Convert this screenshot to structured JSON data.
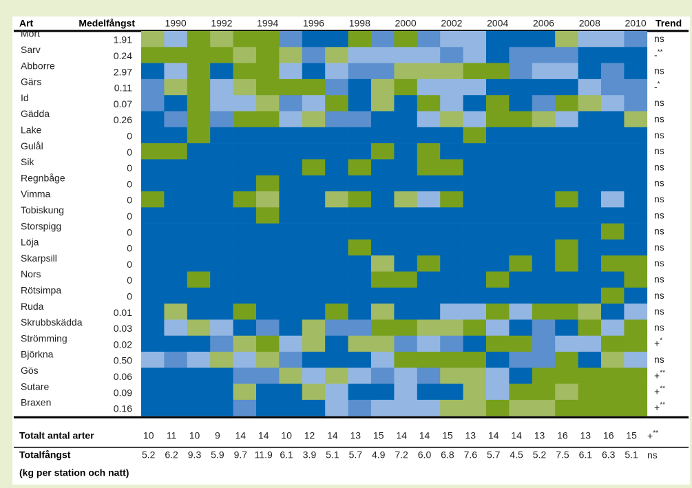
{
  "header": {
    "art": "Art",
    "medel": "Medelfångst",
    "trend": "Trend",
    "years": [
      "1990",
      "1992",
      "1994",
      "1996",
      "1998",
      "2000",
      "2002",
      "2004",
      "2006",
      "2008",
      "2010"
    ]
  },
  "palette": [
    "#0066b3",
    "#5b8fce",
    "#94b6e3",
    "#a3bb62",
    "#78a01c"
  ],
  "rows": [
    {
      "name": "Mört",
      "value": "1.91",
      "trend": {
        "sign": "ns"
      },
      "cells": [
        3,
        2,
        4,
        3,
        4,
        4,
        1,
        0,
        0,
        4,
        1,
        4,
        1,
        2,
        2,
        0,
        0,
        0,
        3,
        2,
        2,
        1
      ]
    },
    {
      "name": "Sarv",
      "value": "0.24",
      "trend": {
        "sign": "-",
        "sig": "**"
      },
      "cells": [
        4,
        4,
        4,
        4,
        3,
        4,
        3,
        1,
        3,
        2,
        2,
        2,
        2,
        1,
        2,
        0,
        1,
        1,
        1,
        0,
        0,
        0
      ]
    },
    {
      "name": "Abborre",
      "value": "2.97",
      "trend": {
        "sign": "ns"
      },
      "cells": [
        0,
        2,
        4,
        0,
        4,
        4,
        2,
        0,
        2,
        1,
        1,
        3,
        3,
        3,
        4,
        4,
        1,
        2,
        2,
        0,
        1,
        0
      ]
    },
    {
      "name": "Gärs",
      "value": "0.11",
      "trend": {
        "sign": "-",
        "sig": "*"
      },
      "cells": [
        1,
        3,
        4,
        2,
        3,
        4,
        4,
        4,
        1,
        0,
        3,
        4,
        2,
        2,
        2,
        0,
        0,
        0,
        0,
        2,
        1,
        1
      ]
    },
    {
      "name": "Id",
      "value": "0.07",
      "trend": {
        "sign": "ns"
      },
      "cells": [
        1,
        0,
        4,
        2,
        2,
        3,
        1,
        2,
        4,
        0,
        3,
        0,
        4,
        2,
        0,
        4,
        0,
        1,
        4,
        3,
        2,
        1
      ]
    },
    {
      "name": "Gädda",
      "value": "0.26",
      "trend": {
        "sign": "ns"
      },
      "cells": [
        0,
        1,
        4,
        1,
        4,
        4,
        2,
        3,
        1,
        1,
        0,
        0,
        2,
        3,
        2,
        4,
        4,
        3,
        2,
        0,
        0,
        3
      ]
    },
    {
      "name": "Lake",
      "value": "0",
      "trend": {
        "sign": "ns"
      },
      "cells": [
        0,
        0,
        4,
        0,
        0,
        0,
        0,
        0,
        0,
        0,
        0,
        0,
        0,
        0,
        4,
        0,
        0,
        0,
        0,
        0,
        0,
        0
      ]
    },
    {
      "name": "Gulål",
      "value": "0",
      "trend": {
        "sign": "ns"
      },
      "cells": [
        4,
        4,
        0,
        0,
        0,
        0,
        0,
        0,
        0,
        0,
        4,
        0,
        4,
        0,
        0,
        0,
        0,
        0,
        0,
        0,
        0,
        0
      ]
    },
    {
      "name": "Sik",
      "value": "0",
      "trend": {
        "sign": "ns"
      },
      "cells": [
        0,
        0,
        0,
        0,
        0,
        0,
        0,
        4,
        0,
        4,
        0,
        0,
        4,
        4,
        0,
        0,
        0,
        0,
        0,
        0,
        0,
        0
      ]
    },
    {
      "name": "Regnbåge",
      "value": "0",
      "trend": {
        "sign": "ns"
      },
      "cells": [
        0,
        0,
        0,
        0,
        0,
        4,
        0,
        0,
        0,
        0,
        0,
        0,
        0,
        0,
        0,
        0,
        0,
        0,
        0,
        0,
        0,
        0
      ]
    },
    {
      "name": "Vimma",
      "value": "0",
      "trend": {
        "sign": "ns"
      },
      "cells": [
        4,
        0,
        0,
        0,
        4,
        3,
        0,
        0,
        3,
        4,
        0,
        3,
        2,
        4,
        0,
        0,
        0,
        0,
        4,
        0,
        2,
        0
      ]
    },
    {
      "name": "Tobiskung",
      "value": "0",
      "trend": {
        "sign": "ns"
      },
      "cells": [
        0,
        0,
        0,
        0,
        0,
        4,
        0,
        0,
        0,
        0,
        0,
        0,
        0,
        0,
        0,
        0,
        0,
        0,
        0,
        0,
        0,
        0
      ]
    },
    {
      "name": "Storspigg",
      "value": "0",
      "trend": {
        "sign": "ns"
      },
      "cells": [
        0,
        0,
        0,
        0,
        0,
        0,
        0,
        0,
        0,
        0,
        0,
        0,
        0,
        0,
        0,
        0,
        0,
        0,
        0,
        0,
        4,
        0
      ]
    },
    {
      "name": "Löja",
      "value": "0",
      "trend": {
        "sign": "ns"
      },
      "cells": [
        0,
        0,
        0,
        0,
        0,
        0,
        0,
        0,
        0,
        4,
        0,
        0,
        0,
        0,
        0,
        0,
        0,
        0,
        4,
        0,
        0,
        0
      ]
    },
    {
      "name": "Skarpsill",
      "value": "0",
      "trend": {
        "sign": "ns"
      },
      "cells": [
        0,
        0,
        0,
        0,
        0,
        0,
        0,
        0,
        0,
        0,
        3,
        0,
        4,
        0,
        0,
        0,
        4,
        0,
        4,
        0,
        4,
        4
      ]
    },
    {
      "name": "Nors",
      "value": "0",
      "trend": {
        "sign": "ns"
      },
      "cells": [
        0,
        0,
        4,
        0,
        0,
        0,
        0,
        0,
        0,
        0,
        4,
        4,
        0,
        0,
        0,
        4,
        0,
        0,
        0,
        0,
        0,
        4
      ]
    },
    {
      "name": "Rötsimpa",
      "value": "0",
      "trend": {
        "sign": "ns"
      },
      "cells": [
        0,
        0,
        0,
        0,
        0,
        0,
        0,
        0,
        0,
        0,
        0,
        0,
        0,
        0,
        0,
        0,
        0,
        0,
        0,
        0,
        4,
        0
      ]
    },
    {
      "name": "Ruda",
      "value": "0.01",
      "trend": {
        "sign": "ns"
      },
      "cells": [
        0,
        3,
        0,
        0,
        4,
        0,
        0,
        0,
        4,
        0,
        3,
        0,
        0,
        2,
        2,
        4,
        2,
        4,
        4,
        3,
        0,
        2
      ]
    },
    {
      "name": "Skrubbskädda",
      "value": "0.03",
      "trend": {
        "sign": "ns"
      },
      "cells": [
        0,
        2,
        3,
        2,
        0,
        1,
        0,
        3,
        1,
        1,
        4,
        4,
        3,
        3,
        4,
        2,
        0,
        1,
        0,
        4,
        2,
        4
      ]
    },
    {
      "name": "Strömming",
      "value": "0.02",
      "trend": {
        "sign": "+",
        "sig": "*"
      },
      "cells": [
        0,
        0,
        0,
        1,
        3,
        4,
        2,
        3,
        0,
        3,
        3,
        1,
        2,
        1,
        0,
        4,
        4,
        1,
        2,
        2,
        4,
        4
      ]
    },
    {
      "name": "Björkna",
      "value": "0.50",
      "trend": {
        "sign": "ns"
      },
      "cells": [
        2,
        1,
        2,
        3,
        2,
        3,
        1,
        0,
        0,
        0,
        2,
        4,
        4,
        4,
        4,
        0,
        1,
        1,
        4,
        0,
        3,
        2
      ]
    },
    {
      "name": "Gös",
      "value": "0.06",
      "trend": {
        "sign": "+",
        "sig": "**"
      },
      "cells": [
        0,
        0,
        0,
        0,
        1,
        1,
        3,
        2,
        3,
        2,
        1,
        2,
        1,
        3,
        3,
        2,
        0,
        4,
        4,
        4,
        4,
        4
      ]
    },
    {
      "name": "Sutare",
      "value": "0.09",
      "trend": {
        "sign": "+",
        "sig": "**"
      },
      "cells": [
        0,
        0,
        0,
        0,
        3,
        0,
        0,
        3,
        2,
        0,
        0,
        2,
        0,
        0,
        3,
        2,
        4,
        4,
        3,
        4,
        4,
        4
      ]
    },
    {
      "name": "Braxen",
      "value": "0.16",
      "trend": {
        "sign": "+",
        "sig": "**"
      },
      "cells": [
        0,
        0,
        0,
        0,
        1,
        0,
        0,
        0,
        2,
        1,
        2,
        2,
        2,
        3,
        3,
        4,
        3,
        3,
        4,
        4,
        4,
        4
      ]
    }
  ],
  "totals": [
    {
      "label": "Totalt antal arter",
      "values": [
        "10",
        "11",
        "10",
        "9",
        "14",
        "14",
        "10",
        "12",
        "14",
        "13",
        "15",
        "14",
        "14",
        "15",
        "13",
        "14",
        "14",
        "13",
        "16",
        "13",
        "16",
        "15"
      ],
      "trend": {
        "sign": "+",
        "sig": "**"
      }
    },
    {
      "label": "Totalfångst",
      "sublabel": "(kg per station och natt)",
      "values": [
        "5.2",
        "6.2",
        "9.3",
        "5.9",
        "9.7",
        "11.9",
        "6.1",
        "3.9",
        "5.1",
        "5.7",
        "4.9",
        "7.2",
        "6.0",
        "6.8",
        "7.6",
        "5.7",
        "4.5",
        "5.2",
        "7.5",
        "6.1",
        "6.3",
        "5.1"
      ],
      "trend": {
        "sign": "ns"
      }
    }
  ]
}
